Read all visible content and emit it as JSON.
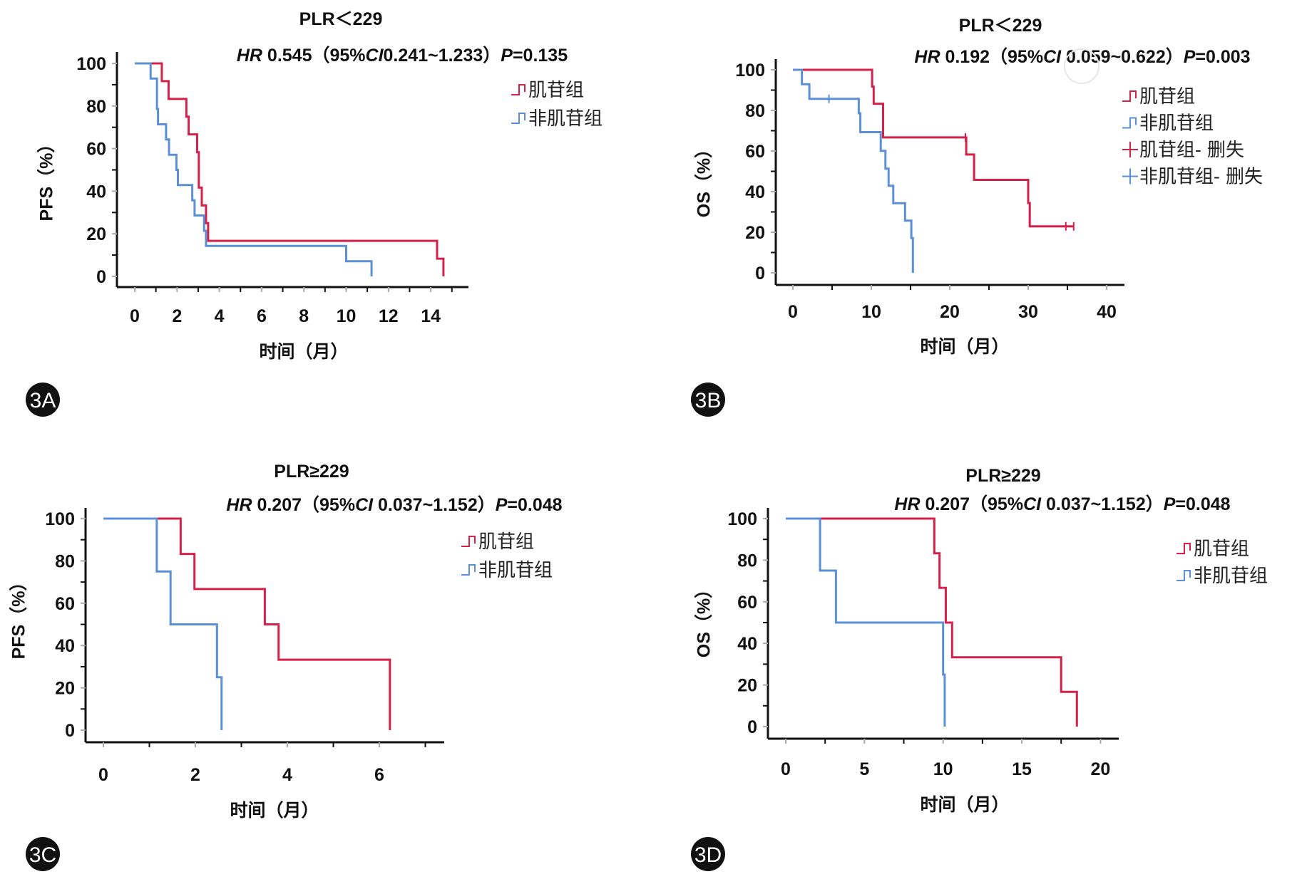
{
  "colors": {
    "muscle_group": "#d6204a",
    "non_muscle_group": "#5b8fd6",
    "axis": "#111111"
  },
  "chart_data": [
    {
      "panel": "3A",
      "type": "line",
      "step": true,
      "title": "PLR＜229",
      "stat": [
        {
          "t": "HR",
          "i": true
        },
        {
          "t": " 0.545（95%"
        },
        {
          "t": "CI",
          "i": true
        },
        {
          "t": "0.241~1.233）"
        },
        {
          "t": "P",
          "i": true
        },
        {
          "t": "=0.135"
        }
      ],
      "xlabel": "时间（月）",
      "ylabel": "PFS（%）",
      "xlim": [
        0,
        15.5
      ],
      "ylim": [
        0,
        100
      ],
      "xticks": [
        0,
        2,
        4,
        6,
        8,
        10,
        12,
        14
      ],
      "yticks": [
        0,
        20,
        40,
        60,
        80,
        100
      ],
      "legend": [
        "肌苷组",
        "非肌苷组"
      ],
      "legend_position": "top-right",
      "series": [
        {
          "name": "肌苷组",
          "color_key": "muscle_group",
          "steps": [
            [
              0,
              100
            ],
            [
              1.28,
              91.7
            ],
            [
              1.6,
              83.3
            ],
            [
              2.44,
              75
            ],
            [
              2.55,
              66.7
            ],
            [
              2.95,
              58.3
            ],
            [
              3.03,
              41.7
            ],
            [
              3.17,
              33.3
            ],
            [
              3.37,
              25
            ],
            [
              3.47,
              16.7
            ],
            [
              14.3,
              8.3
            ],
            [
              14.6,
              0
            ]
          ],
          "censored": []
        },
        {
          "name": "非肌苷组",
          "color_key": "non_muscle_group",
          "steps": [
            [
              0,
              100
            ],
            [
              0.75,
              92.9
            ],
            [
              1.05,
              78.6
            ],
            [
              1.1,
              71.4
            ],
            [
              1.48,
              64.3
            ],
            [
              1.62,
              57.1
            ],
            [
              1.97,
              50
            ],
            [
              2.04,
              42.9
            ],
            [
              2.72,
              35.7
            ],
            [
              2.83,
              28.6
            ],
            [
              3.28,
              21.4
            ],
            [
              3.37,
              14.3
            ],
            [
              10.0,
              7.1
            ],
            [
              11.2,
              0
            ]
          ],
          "censored": []
        }
      ]
    },
    {
      "panel": "3B",
      "type": "line",
      "step": true,
      "title": "PLR＜229",
      "stat": [
        {
          "t": "HR",
          "i": true
        },
        {
          "t": " 0.192（95%"
        },
        {
          "t": "CI",
          "i": true
        },
        {
          "t": " 0.059~0.622）"
        },
        {
          "t": "P",
          "i": true
        },
        {
          "t": "=0.003"
        }
      ],
      "xlabel": "时间（月）",
      "ylabel": "OS（%）",
      "xlim": [
        0,
        42
      ],
      "ylim": [
        0,
        100
      ],
      "xticks": [
        0,
        10,
        20,
        30,
        40
      ],
      "yticks": [
        0,
        20,
        40,
        60,
        80,
        100
      ],
      "legend": [
        "肌苷组",
        "非肌苷组",
        "肌苷组- 删失",
        "非肌苷组- 删失"
      ],
      "legend_position": "top-right",
      "series": [
        {
          "name": "肌苷组",
          "color_key": "muscle_group",
          "steps": [
            [
              0,
              100
            ],
            [
              10.1,
              91.7
            ],
            [
              10.3,
              83.3
            ],
            [
              11.5,
              66.7
            ],
            [
              22.1,
              58.3
            ],
            [
              23.1,
              45.8
            ],
            [
              30.0,
              34.4
            ],
            [
              30.2,
              22.9
            ],
            [
              35.8,
              22.9
            ]
          ],
          "censored": [
            [
              22.0,
              66.7
            ],
            [
              34.8,
              22.9
            ],
            [
              35.8,
              22.9
            ]
          ]
        },
        {
          "name": "非肌苷组",
          "color_key": "non_muscle_group",
          "steps": [
            [
              0,
              100
            ],
            [
              1.15,
              92.9
            ],
            [
              2.1,
              85.7
            ],
            [
              8.4,
              78.6
            ],
            [
              8.6,
              69.3
            ],
            [
              11.2,
              60.1
            ],
            [
              11.8,
              51.3
            ],
            [
              12.2,
              42.9
            ],
            [
              12.8,
              34.3
            ],
            [
              14.3,
              25.7
            ],
            [
              15.1,
              17.1
            ],
            [
              15.3,
              0
            ]
          ],
          "censored": [
            [
              4.6,
              85.7
            ]
          ]
        }
      ]
    },
    {
      "panel": "3C",
      "type": "line",
      "step": true,
      "title": "PLR≥229",
      "stat": [
        {
          "t": "HR",
          "i": true
        },
        {
          "t": " 0.207（95%"
        },
        {
          "t": "CI",
          "i": true
        },
        {
          "t": " 0.037~1.152）"
        },
        {
          "t": "P",
          "i": true
        },
        {
          "t": "=0.048"
        }
      ],
      "xlabel": "时间（月）",
      "ylabel": "PFS（%）",
      "xlim": [
        0,
        7.4
      ],
      "ylim": [
        0,
        100
      ],
      "xticks": [
        0,
        2,
        4,
        6
      ],
      "yticks": [
        0,
        20,
        40,
        60,
        80,
        100
      ],
      "legend": [
        "肌苷组",
        "非肌苷组"
      ],
      "legend_position": "top-right",
      "series": [
        {
          "name": "肌苷组",
          "color_key": "muscle_group",
          "steps": [
            [
              0,
              100
            ],
            [
              1.68,
              83.3
            ],
            [
              1.98,
              66.7
            ],
            [
              3.51,
              50
            ],
            [
              3.81,
              33.3
            ],
            [
              6.23,
              0
            ]
          ],
          "censored": []
        },
        {
          "name": "非肌苷组",
          "color_key": "non_muscle_group",
          "steps": [
            [
              0,
              100
            ],
            [
              1.16,
              75
            ],
            [
              1.46,
              50
            ],
            [
              2.47,
              25
            ],
            [
              2.57,
              0
            ]
          ],
          "censored": []
        }
      ]
    },
    {
      "panel": "3D",
      "type": "line",
      "step": true,
      "title": "PLR≥229",
      "stat": [
        {
          "t": "HR",
          "i": true
        },
        {
          "t": " 0.207（95%"
        },
        {
          "t": "CI",
          "i": true
        },
        {
          "t": " 0.037~1.152）"
        },
        {
          "t": "P",
          "i": true
        },
        {
          "t": "=0.048"
        }
      ],
      "xlabel": "时间（月）",
      "ylabel": "OS（%）",
      "xlim": [
        0,
        21.2
      ],
      "ylim": [
        0,
        100
      ],
      "xticks": [
        0,
        5,
        10,
        15,
        20
      ],
      "yticks": [
        0,
        20,
        40,
        60,
        80,
        100
      ],
      "legend": [
        "肌苷组",
        "非肌苷组"
      ],
      "legend_position": "top-right",
      "series": [
        {
          "name": "肌苷组",
          "color_key": "muscle_group",
          "steps": [
            [
              0,
              100
            ],
            [
              9.44,
              83.3
            ],
            [
              9.77,
              66.7
            ],
            [
              10.17,
              50
            ],
            [
              10.57,
              33.3
            ],
            [
              17.5,
              16.7
            ],
            [
              18.5,
              0
            ]
          ],
          "censored": []
        },
        {
          "name": "非肌苷组",
          "color_key": "non_muscle_group",
          "steps": [
            [
              0,
              100
            ],
            [
              2.18,
              75
            ],
            [
              3.19,
              50
            ],
            [
              10.0,
              25
            ],
            [
              10.1,
              0
            ]
          ],
          "censored": []
        }
      ]
    }
  ]
}
